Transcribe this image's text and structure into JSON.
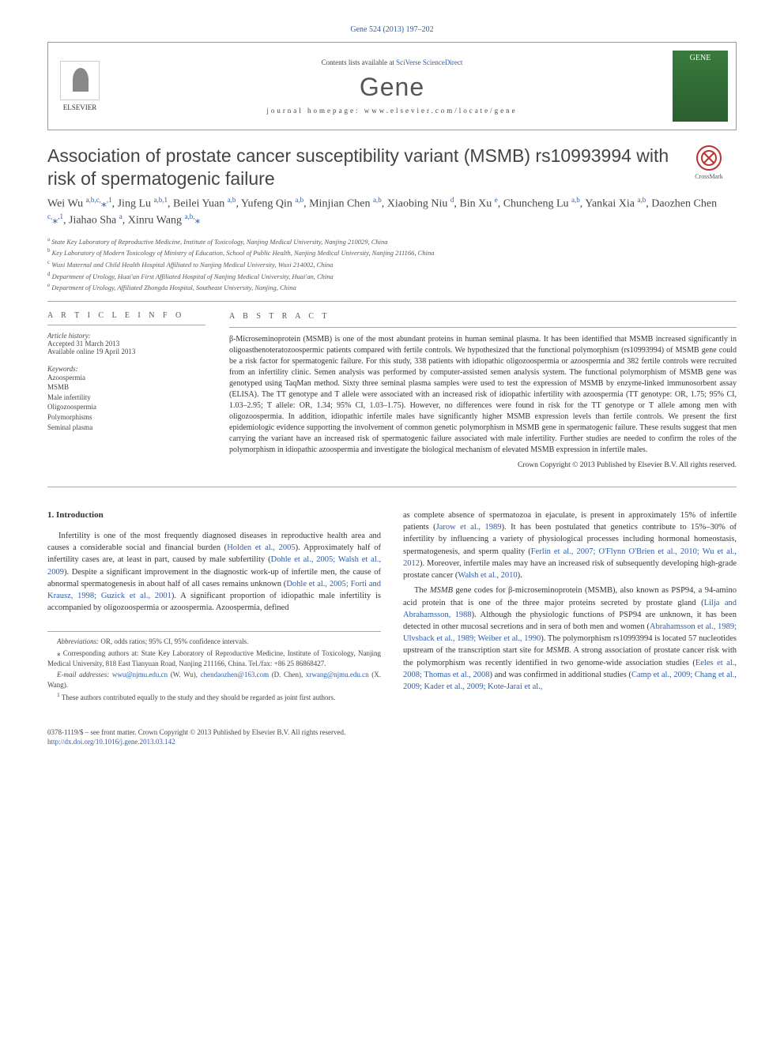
{
  "citation": "Gene 524 (2013) 197–202",
  "header": {
    "contents_prefix": "Contents lists available at ",
    "contents_link": "SciVerse ScienceDirect",
    "journal": "Gene",
    "homepage_prefix": "journal homepage: ",
    "homepage": "www.elsevier.com/locate/gene",
    "publisher": "ELSEVIER",
    "cover_text": "GENE"
  },
  "title": "Association of prostate cancer susceptibility variant (MSMB) rs10993994 with risk of spermatogenic failure",
  "crossmark": "CrossMark",
  "authors_html": "Wei Wu <span class='aff-sup'>a,b,c,</span><span class='star'>⁎</span><span class='aff-sup'>,1</span>, Jing Lu <span class='aff-sup'>a,b,1</span>, Beilei Yuan <span class='aff-sup'>a,b</span>, Yufeng Qin <span class='aff-sup'>a,b</span>, Minjian Chen <span class='aff-sup'>a,b</span>, Xiaobing Niu <span class='aff-sup'>d</span>, Bin Xu <span class='aff-sup'>e</span>, Chuncheng Lu <span class='aff-sup'>a,b</span>, Yankai Xia <span class='aff-sup'>a,b</span>, Daozhen Chen <span class='aff-sup'>c,</span><span class='star'>⁎</span><span class='aff-sup'>,1</span>, Jiahao Sha <span class='aff-sup'>a</span>, Xinru Wang <span class='aff-sup'>a,b,</span><span class='star'>⁎</span>",
  "affiliations": [
    {
      "sup": "a",
      "text": "State Key Laboratory of Reproductive Medicine, Institute of Toxicology, Nanjing Medical University, Nanjing 210029, China"
    },
    {
      "sup": "b",
      "text": "Key Laboratory of Modern Toxicology of Ministry of Education, School of Public Health, Nanjing Medical University, Nanjing 211166, China"
    },
    {
      "sup": "c",
      "text": "Wuxi Maternal and Child Health Hospital Affiliated to Nanjing Medical University, Wuxi 214002, China"
    },
    {
      "sup": "d",
      "text": "Department of Urology, Huai'an First Affiliated Hospital of Nanjing Medical University, Huai'an, China"
    },
    {
      "sup": "e",
      "text": "Department of Urology, Affiliated Zhongda Hospital, Southeast University, Nanjing, China"
    }
  ],
  "article_info": {
    "heading": "A R T I C L E   I N F O",
    "history_label": "Article history:",
    "accepted": "Accepted 31 March 2013",
    "online": "Available online 19 April 2013",
    "keywords_label": "Keywords:",
    "keywords": [
      "Azoospermia",
      "MSMB",
      "Male infertility",
      "Oligozoospermia",
      "Polymorphisms",
      "Seminal plasma"
    ]
  },
  "abstract": {
    "heading": "A B S T R A C T",
    "text": "β-Microseminoprotein (MSMB) is one of the most abundant proteins in human seminal plasma. It has been identified that MSMB increased significantly in oligoasthenoteratozoospermic patients compared with fertile controls. We hypothesized that the functional polymorphism (rs10993994) of MSMB gene could be a risk factor for spermatogenic failure. For this study, 338 patients with idiopathic oligozoospermia or azoospermia and 382 fertile controls were recruited from an infertility clinic. Semen analysis was performed by computer-assisted semen analysis system. The functional polymorphism of MSMB gene was genotyped using TaqMan method. Sixty three seminal plasma samples were used to test the expression of MSMB by enzyme-linked immunosorbent assay (ELISA). The TT genotype and T allele were associated with an increased risk of idiopathic infertility with azoospermia (TT genotype: OR, 1.75; 95% CI, 1.03–2.95; T allele: OR, 1.34; 95% CI, 1.03–1.75). However, no differences were found in risk for the TT genotype or T allele among men with oligozoospermia. In addition, idiopathic infertile males have significantly higher MSMB expression levels than fertile controls. We present the first epidemiologic evidence supporting the involvement of common genetic polymorphism in MSMB gene in spermatogenic failure. These results suggest that men carrying the variant have an increased risk of spermatogenic failure associated with male infertility. Further studies are needed to confirm the roles of the polymorphism in idiopathic azoospermia and investigate the biological mechanism of elevated MSMB expression in infertile males.",
    "copyright": "Crown Copyright © 2013 Published by Elsevier B.V. All rights reserved."
  },
  "intro": {
    "heading": "1. Introduction",
    "p1_a": "Infertility is one of the most frequently diagnosed diseases in reproductive health area and causes a considerable social and financial burden (",
    "p1_ref1": "Holden et al., 2005",
    "p1_b": "). Approximately half of infertility cases are, at least in part, caused by male subfertility (",
    "p1_ref2": "Dohle et al., 2005; Walsh et al., 2009",
    "p1_c": "). Despite a significant improvement in the diagnostic work-up of infertile men, the cause of abnormal spermatogenesis in about half of all cases remains unknown (",
    "p1_ref3": "Dohle et al., 2005; Forti and Krausz, 1998; Guzick et al., 2001",
    "p1_d": "). A significant proportion of idiopathic male infertility is accompanied by oligozoospermia or azoospermia. Azoospermia, defined",
    "p2_a": "as complete absence of spermatozoa in ejaculate, is present in approximately 15% of infertile patients (",
    "p2_ref1": "Jarow et al., 1989",
    "p2_b": "). It has been postulated that genetics contribute to 15%–30% of infertility by influencing a variety of physiological processes including hormonal homeostasis, spermatogenesis, and sperm quality (",
    "p2_ref2": "Ferlin et al., 2007; O'Flynn O'Brien et al., 2010; Wu et al., 2012",
    "p2_c": "). Moreover, infertile males may have an increased risk of subsequently developing high-grade prostate cancer (",
    "p2_ref3": "Walsh et al., 2010",
    "p2_d": ").",
    "p3_a": "The ",
    "p3_em1": "MSMB",
    "p3_b": " gene codes for β-microseminoprotein (MSMB), also known as PSP94, a 94-amino acid protein that is one of the three major proteins secreted by prostate gland (",
    "p3_ref1": "Lilja and Abrahamsson, 1988",
    "p3_c": "). Although the physiologic functions of PSP94 are unknown, it has been detected in other mucosal secretions and in sera of both men and women (",
    "p3_ref2": "Abrahamsson et al., 1989; Ulvsback et al., 1989; Weiber et al., 1990",
    "p3_d": "). The polymorphism rs10993994 is located 57 nucleotides upstream of the transcription start site for ",
    "p3_em2": "MSMB",
    "p3_e": ". A strong association of prostate cancer risk with the polymorphism was recently identified in two genome-wide association studies (",
    "p3_ref3": "Eeles et al., 2008; Thomas et al., 2008",
    "p3_f": ") and was confirmed in additional studies (",
    "p3_ref4": "Camp et al., 2009; Chang et al., 2009; Kader et al., 2009; Kote-Jarai et al.,"
  },
  "footnotes": {
    "abbrev_label": "Abbreviations:",
    "abbrev": " OR, odds ratios; 95% CI, 95% confidence intervals.",
    "corr_sym": "⁎",
    "corr": " Corresponding authors at: State Key Laboratory of Reproductive Medicine, Institute of Toxicology, Nanjing Medical University, 818 East Tianyuan Road, Nanjing 211166, China. Tel./fax: +86 25 86868427.",
    "email_label": "E-mail addresses:",
    "email1": "wwu@njmu.edu.cn",
    "email1_who": " (W. Wu), ",
    "email2": "chendaozhen@163.com",
    "email2_who": " (D. Chen), ",
    "email3": "xrwang@njmu.edu.cn",
    "email3_who": " (X. Wang).",
    "joint_sym": "1",
    "joint": " These authors contributed equally to the study and they should be regarded as joint first authors."
  },
  "footer": {
    "issn": "0378-1119/$ – see front matter. Crown Copyright © 2013 Published by Elsevier B.V. All rights reserved.",
    "doi": "http://dx.doi.org/10.1016/j.gene.2013.03.142"
  },
  "colors": {
    "link": "#2d5ca8",
    "text": "#333",
    "rule": "#aaa",
    "journal_cover": "#387a3e"
  }
}
